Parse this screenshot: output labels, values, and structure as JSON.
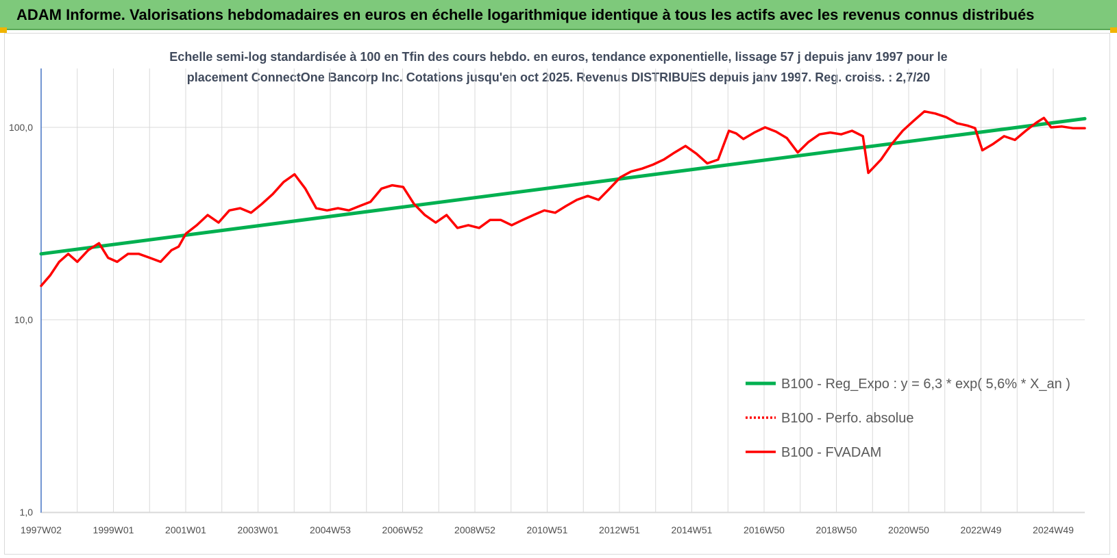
{
  "banner": {
    "title": "ADAM Informe. Valorisations hebdomadaires en euros en échelle logarithmique identique à tous les actifs avec les revenus connus distribués"
  },
  "colors": {
    "banner": "#7ec97b",
    "trend": "#00b050",
    "perf": "#ff0000",
    "fvadam": "#ff0000",
    "grid": "#d9d9d9",
    "axis": "#4472c4"
  },
  "chart_data": {
    "type": "line",
    "title_line1": "Echelle semi-log standardisée à 100 en Tfin des cours hebdo. en euros, tendance exponentielle, lissage 57 j depuis janv 1997 pour le",
    "title_line2": "placement ConnectOne Bancorp Inc. Cotations jusqu'en oct 2025.  Revenus DISTRIBUES depuis janv 1997.  Reg. croiss. : 2,7/20",
    "y_scale": "log",
    "ylim": [
      1,
      200
    ],
    "xlim": [
      1997.0,
      2025.83
    ],
    "y_ticks": [
      "1,0",
      "10,0",
      "100,0"
    ],
    "x_ticks": [
      "1997W02",
      "1999W01",
      "2001W01",
      "2003W01",
      "2004W53",
      "2006W52",
      "2008W52",
      "2010W51",
      "2012W51",
      "2014W51",
      "2016W50",
      "2018W50",
      "2020W50",
      "2022W49",
      "2024W49"
    ],
    "grid": true,
    "legend_position": "bottom-right",
    "series": [
      {
        "name": "B100 - Reg_Expo : y = 6,3 * exp( 5,6% *  X_an )",
        "style": "solid",
        "x": [
          1997.0,
          2025.83
        ],
        "y": [
          22,
          111
        ]
      },
      {
        "name": "B100 - Perfo. absolue",
        "style": "dotted",
        "x": [],
        "y": []
      },
      {
        "name": "B100 - FVADAM",
        "style": "solid",
        "x": [
          1997.0,
          1997.25,
          1997.5,
          1997.75,
          1998.0,
          1998.3,
          1998.6,
          1998.85,
          1999.1,
          1999.4,
          1999.7,
          2000.0,
          2000.3,
          2000.6,
          2000.8,
          2001.0,
          2001.3,
          2001.6,
          2001.9,
          2002.2,
          2002.5,
          2002.8,
          2003.1,
          2003.4,
          2003.7,
          2004.0,
          2004.3,
          2004.6,
          2004.9,
          2005.2,
          2005.5,
          2005.8,
          2006.1,
          2006.4,
          2006.7,
          2007.0,
          2007.3,
          2007.6,
          2007.9,
          2008.2,
          2008.5,
          2008.8,
          2009.1,
          2009.4,
          2009.7,
          2010.0,
          2010.3,
          2010.6,
          2010.9,
          2011.2,
          2011.5,
          2011.8,
          2012.1,
          2012.4,
          2012.7,
          2013.0,
          2013.3,
          2013.6,
          2013.9,
          2014.2,
          2014.5,
          2014.8,
          2015.1,
          2015.4,
          2015.7,
          2016.0,
          2016.2,
          2016.4,
          2016.7,
          2017.0,
          2017.3,
          2017.6,
          2017.9,
          2018.2,
          2018.5,
          2018.8,
          2019.1,
          2019.4,
          2019.7,
          2019.85,
          2020.0,
          2020.2,
          2020.5,
          2020.8,
          2021.1,
          2021.4,
          2021.7,
          2022.0,
          2022.3,
          2022.6,
          2022.8,
          2023.0,
          2023.3,
          2023.6,
          2023.9,
          2024.2,
          2024.5,
          2024.7,
          2024.9,
          2025.2,
          2025.5,
          2025.83
        ],
        "y": [
          15,
          17,
          20,
          22,
          20,
          23,
          25,
          21,
          20,
          22,
          22,
          21,
          20,
          23,
          24,
          28,
          31,
          35,
          32,
          37,
          38,
          36,
          40,
          45,
          52,
          57,
          48,
          38,
          37,
          38,
          37,
          39,
          41,
          48,
          50,
          49,
          40,
          35,
          32,
          35,
          30,
          31,
          30,
          33,
          33,
          31,
          33,
          35,
          37,
          36,
          39,
          42,
          44,
          42,
          48,
          55,
          59,
          61,
          64,
          68,
          74,
          80,
          73,
          65,
          68,
          96,
          93,
          87,
          94,
          100,
          95,
          88,
          74,
          84,
          92,
          94,
          92,
          96,
          90,
          58,
          62,
          68,
          82,
          96,
          108,
          121,
          118,
          113,
          105,
          102,
          99,
          76,
          82,
          90,
          86,
          96,
          106,
          112,
          100,
          101,
          99,
          99
        ]
      }
    ]
  }
}
